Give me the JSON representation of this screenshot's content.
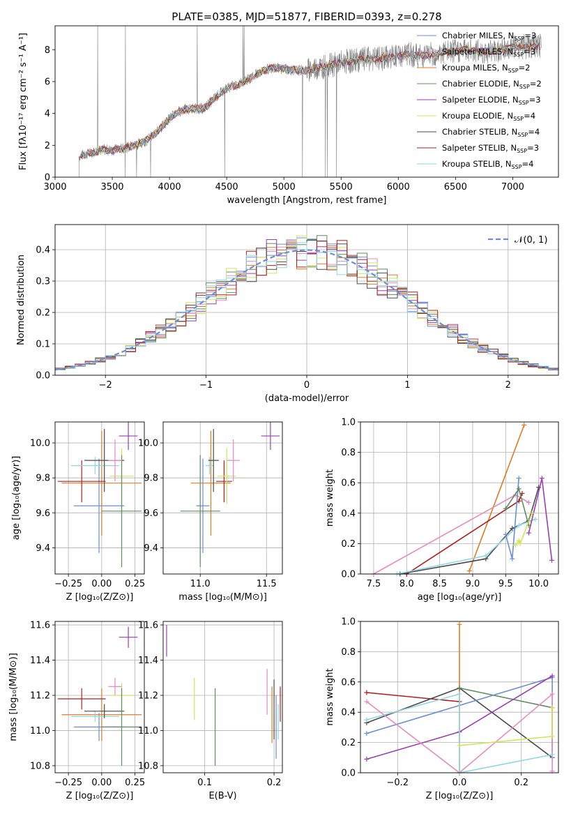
{
  "title": "PLATE=0385, MJD=51877, FIBERID=0393, z=0.278",
  "colors": {
    "Chabrier MILES": "#6a8ed4",
    "Salpeter MILES": "#e889c3",
    "Kroupa MILES": "#e07b22",
    "Chabrier ELODIE": "#5f8c5f",
    "Salpeter ELODIE": "#9b3fb0",
    "Kroupa ELODIE": "#cfe65a",
    "Chabrier STELIB": "#4a4a4a",
    "Salpeter STELIB": "#b01f1f",
    "Kroupa STELIB": "#8fd6e6",
    "spectrum": "#808080",
    "normal": "#6a8ed4"
  },
  "chart_data": [
    {
      "id": "spectrum",
      "type": "line",
      "title": "PLATE=0385, MJD=51877, FIBERID=0393, z=0.278",
      "xlabel": "wavelength [Angstrom, rest frame]",
      "ylabel": "Flux [fλ10⁻¹⁷ erg cm⁻² s⁻¹ A⁻¹]",
      "xlim": [
        3000,
        7400
      ],
      "ylim": [
        0,
        9.5
      ],
      "xticks": [
        "3000",
        "3500",
        "4000",
        "4500",
        "5000",
        "5500",
        "6000",
        "6500",
        "7000"
      ],
      "yticks": [
        "0",
        "2",
        "4",
        "6",
        "8"
      ],
      "legend_position": "top-right",
      "legend": [
        {
          "model": "Chabrier MILES",
          "label": "Chabrier MILES, N",
          "sub": "SSP",
          "suffix": "=3"
        },
        {
          "model": "Salpeter MILES",
          "label": "Salpeter MILES, N",
          "sub": "SSP",
          "suffix": "=3"
        },
        {
          "model": "Kroupa MILES",
          "label": "Kroupa MILES, N",
          "sub": "SSP",
          "suffix": "=2"
        },
        {
          "model": "Chabrier ELODIE",
          "label": "Chabrier ELODIE, N",
          "sub": "SSP",
          "suffix": "=2"
        },
        {
          "model": "Salpeter ELODIE",
          "label": "Salpeter ELODIE, N",
          "sub": "SSP",
          "suffix": "=3"
        },
        {
          "model": "Kroupa ELODIE",
          "label": "Kroupa ELODIE, N",
          "sub": "SSP",
          "suffix": "=4"
        },
        {
          "model": "Chabrier STELIB",
          "label": "Chabrier STELIB, N",
          "sub": "SSP",
          "suffix": "=4"
        },
        {
          "model": "Salpeter STELIB",
          "label": "Salpeter STELIB, N",
          "sub": "SSP",
          "suffix": "=3"
        },
        {
          "model": "Kroupa STELIB",
          "label": "Kroupa STELIB, N",
          "sub": "SSP",
          "suffix": "=4"
        }
      ],
      "continuum": {
        "x": [
          3200,
          3300,
          3400,
          3500,
          3600,
          3700,
          3800,
          3900,
          4000,
          4100,
          4200,
          4300,
          4400,
          4500,
          4600,
          4700,
          4800,
          4900,
          5000,
          5100,
          5200,
          5300,
          5400,
          5500,
          5600,
          5700,
          5800,
          5900,
          6000,
          6100,
          6200,
          6300,
          6400,
          6500,
          6600,
          6700,
          6800,
          6900,
          7000,
          7100,
          7200
        ],
        "y": [
          1.3,
          1.5,
          1.7,
          1.7,
          1.8,
          2.0,
          2.3,
          2.9,
          3.7,
          4.2,
          4.3,
          4.3,
          5.0,
          5.6,
          5.8,
          6.2,
          6.6,
          6.9,
          6.8,
          6.7,
          6.7,
          6.9,
          7.0,
          7.2,
          7.3,
          7.4,
          7.4,
          7.5,
          7.6,
          7.7,
          7.6,
          7.7,
          7.8,
          7.9,
          8.0,
          7.9,
          7.9,
          8.0,
          8.1,
          8.2,
          8.2
        ]
      }
    },
    {
      "id": "residuals",
      "type": "line",
      "xlabel": "(data-model)/error",
      "ylabel": "Normed distribution",
      "xlim": [
        -2.5,
        2.5
      ],
      "ylim": [
        0,
        0.48
      ],
      "xticks": [
        "−2",
        "−1",
        "0",
        "1",
        "2"
      ],
      "xtick_values": [
        -2,
        -1,
        0,
        1,
        2
      ],
      "yticks": [
        "0.0",
        "0.1",
        "0.2",
        "0.3",
        "0.4"
      ],
      "ytick_values": [
        0,
        0.1,
        0.2,
        0.3,
        0.4
      ],
      "grid": true,
      "legend_position": "top-right",
      "legend": [
        {
          "label": "𝒩(0, 1)",
          "style": "dashed"
        }
      ],
      "bin_width": 0.1
    },
    {
      "id": "age-vs-z",
      "type": "scatter",
      "xlabel": "Z [log₁₀(Z/Z⊙)]",
      "ylabel": "age  [log₁₀(age/yr)]",
      "xlim": [
        -0.35,
        0.32
      ],
      "ylim": [
        9.25,
        10.12
      ],
      "xticks": [
        "−0.25",
        "0.00",
        "0.25"
      ],
      "xtick_values": [
        -0.25,
        0,
        0.25
      ],
      "yticks": [
        "9.4",
        "9.6",
        "9.8",
        "10.0"
      ],
      "ytick_values": [
        9.4,
        9.6,
        9.8,
        10.0
      ],
      "grid": true,
      "points": [
        {
          "model": "Salpeter ELODIE",
          "x": 0.2,
          "y": 10.04,
          "xerr": 0.07,
          "yerr": 0.08
        },
        {
          "model": "Chabrier MILES",
          "x": -0.02,
          "y": 9.64,
          "xerr": 0.19,
          "yerr": 0.27
        },
        {
          "model": "Kroupa MILES",
          "x": 0.0,
          "y": 9.77,
          "xerr": 0.3,
          "yerr": 0.3
        },
        {
          "model": "Salpeter STELIB",
          "x": -0.15,
          "y": 9.78,
          "xerr": 0.18,
          "yerr": 0.12
        },
        {
          "model": "Kroupa STELIB",
          "x": -0.05,
          "y": 9.87,
          "xerr": 0.18,
          "yerr": 0.05
        },
        {
          "model": "Chabrier STELIB",
          "x": 0.02,
          "y": 9.9,
          "xerr": 0.15,
          "yerr": 0.18
        },
        {
          "model": "Kroupa ELODIE",
          "x": 0.15,
          "y": 9.81,
          "xerr": 0.09,
          "yerr": 0.16
        },
        {
          "model": "Chabrier ELODIE",
          "x": 0.15,
          "y": 9.61,
          "xerr": 0.15,
          "yerr": 0.32
        },
        {
          "model": "Salpeter MILES",
          "x": 0.1,
          "y": 9.9,
          "xerr": 0.05,
          "yerr": 0.12
        }
      ]
    },
    {
      "id": "age-vs-mass",
      "type": "scatter",
      "xlabel": "mass [log₁₀(M/M⊙)]",
      "ylabel": "",
      "xlim": [
        10.72,
        11.62
      ],
      "ylim": [
        9.25,
        10.12
      ],
      "xticks": [
        "11.0",
        "11.5"
      ],
      "xtick_values": [
        11.0,
        11.5
      ],
      "yticks": [
        "9.4",
        "9.6",
        "9.8",
        "10.0"
      ],
      "ytick_values": [
        9.4,
        9.6,
        9.8,
        10.0
      ],
      "grid": true,
      "points": [
        {
          "model": "Salpeter ELODIE",
          "x": 11.53,
          "y": 10.04,
          "xerr": 0.07,
          "yerr": 0.08
        },
        {
          "model": "Chabrier MILES",
          "x": 11.02,
          "y": 9.64,
          "xerr": 0.05,
          "yerr": 0.27
        },
        {
          "model": "Kroupa MILES",
          "x": 11.08,
          "y": 9.77,
          "xerr": 0.15,
          "yerr": 0.3
        },
        {
          "model": "Salpeter STELIB",
          "x": 11.18,
          "y": 9.78,
          "xerr": 0.06,
          "yerr": 0.12
        },
        {
          "model": "Kroupa STELIB",
          "x": 11.07,
          "y": 9.87,
          "xerr": 0.03,
          "yerr": 0.05
        },
        {
          "model": "Chabrier STELIB",
          "x": 11.1,
          "y": 9.9,
          "xerr": 0.04,
          "yerr": 0.18
        },
        {
          "model": "Kroupa ELODIE",
          "x": 11.2,
          "y": 9.81,
          "xerr": 0.07,
          "yerr": 0.16
        },
        {
          "model": "Chabrier ELODIE",
          "x": 11.0,
          "y": 9.61,
          "xerr": 0.15,
          "yerr": 0.32
        },
        {
          "model": "Salpeter MILES",
          "x": 11.25,
          "y": 9.9,
          "xerr": 0.05,
          "yerr": 0.12
        }
      ]
    },
    {
      "id": "weight-vs-age",
      "type": "line",
      "xlabel": "age  [log₁₀(age/yr)]",
      "ylabel": "mass weight",
      "xlim": [
        7.3,
        10.3
      ],
      "ylim": [
        0,
        1
      ],
      "xticks": [
        "7.5",
        "8.0",
        "8.5",
        "9.0",
        "9.5",
        "10.0"
      ],
      "xtick_values": [
        7.5,
        8.0,
        8.5,
        9.0,
        9.5,
        10.0
      ],
      "yticks": [
        "0.0",
        "0.2",
        "0.4",
        "0.6",
        "0.8",
        "1.0"
      ],
      "ytick_values": [
        0,
        0.2,
        0.4,
        0.6,
        0.8,
        1.0
      ],
      "grid": true,
      "series": [
        {
          "model": "Kroupa MILES",
          "x": [
            8.95,
            9.78
          ],
          "y": [
            0.02,
            0.98
          ]
        },
        {
          "model": "Salpeter MILES",
          "x": [
            7.5,
            9.65,
            9.85
          ],
          "y": [
            0.0,
            0.52,
            0.47
          ]
        },
        {
          "model": "Salpeter STELIB",
          "x": [
            8.0,
            9.7,
            9.75
          ],
          "y": [
            0.0,
            0.48,
            0.53
          ]
        },
        {
          "model": "Chabrier STELIB",
          "x": [
            7.9,
            9.2,
            9.6,
            9.85,
            10.0
          ],
          "y": [
            0.0,
            0.1,
            0.3,
            0.35,
            0.57
          ]
        },
        {
          "model": "Kroupa STELIB",
          "x": [
            7.85,
            9.2,
            9.7,
            9.95
          ],
          "y": [
            0.0,
            0.12,
            0.32,
            0.36
          ]
        },
        {
          "model": "Chabrier MILES",
          "x": [
            9.5,
            9.6,
            9.7
          ],
          "y": [
            0.26,
            0.1,
            0.63
          ]
        },
        {
          "model": "Chabrier ELODIE",
          "x": [
            9.5,
            9.7,
            9.85
          ],
          "y": [
            0.43,
            0.56,
            0.32
          ]
        },
        {
          "model": "Salpeter ELODIE",
          "x": [
            9.85,
            10.05,
            10.2
          ],
          "y": [
            0.27,
            0.63,
            0.09
          ]
        },
        {
          "model": "Kroupa ELODIE",
          "x": [
            9.65,
            9.7,
            9.72,
            9.9
          ],
          "y": [
            0.19,
            0.22,
            0.2,
            0.4
          ]
        }
      ]
    },
    {
      "id": "mass-vs-z",
      "type": "scatter",
      "xlabel": "Z [log₁₀(Z/Z⊙)]",
      "ylabel": "mass [log₁₀(M/M⊙)]",
      "xlim": [
        -0.35,
        0.32
      ],
      "ylim": [
        10.76,
        11.62
      ],
      "xticks": [
        "−0.25",
        "0.00",
        "0.25"
      ],
      "xtick_values": [
        -0.25,
        0,
        0.25
      ],
      "yticks": [
        "10.8",
        "11.0",
        "11.2",
        "11.4",
        "11.6"
      ],
      "ytick_values": [
        10.8,
        11.0,
        11.2,
        11.4,
        11.6
      ],
      "grid": true,
      "points": [
        {
          "model": "Salpeter ELODIE",
          "x": 0.2,
          "y": 11.53,
          "xerr": 0.07,
          "yerr": 0.06
        },
        {
          "model": "Chabrier MILES",
          "x": -0.02,
          "y": 11.02,
          "xerr": 0.19,
          "yerr": 0.08
        },
        {
          "model": "Kroupa MILES",
          "x": 0.0,
          "y": 11.09,
          "xerr": 0.3,
          "yerr": 0.15
        },
        {
          "model": "Salpeter STELIB",
          "x": -0.15,
          "y": 11.18,
          "xerr": 0.18,
          "yerr": 0.06
        },
        {
          "model": "Kroupa STELIB",
          "x": -0.05,
          "y": 11.08,
          "xerr": 0.18,
          "yerr": 0.03
        },
        {
          "model": "Chabrier STELIB",
          "x": 0.02,
          "y": 11.11,
          "xerr": 0.15,
          "yerr": 0.04
        },
        {
          "model": "Kroupa ELODIE",
          "x": 0.15,
          "y": 11.2,
          "xerr": 0.09,
          "yerr": 0.07
        },
        {
          "model": "Chabrier ELODIE",
          "x": 0.15,
          "y": 11.02,
          "xerr": 0.15,
          "yerr": 0.22
        },
        {
          "model": "Salpeter MILES",
          "x": 0.1,
          "y": 11.25,
          "xerr": 0.05,
          "yerr": 0.05
        }
      ]
    },
    {
      "id": "mass-vs-ebv",
      "type": "scatter",
      "xlabel": "E(B-V)",
      "ylabel": "",
      "xlim": [
        0.04,
        0.212
      ],
      "ylim": [
        10.76,
        11.62
      ],
      "xticks": [
        "0.1",
        "0.2"
      ],
      "xtick_values": [
        0.1,
        0.2
      ],
      "yticks": [
        "10.8",
        "11.0",
        "11.2",
        "11.4",
        "11.6"
      ],
      "ytick_values": [
        10.8,
        11.0,
        11.2,
        11.4,
        11.6
      ],
      "grid": true,
      "points": [
        {
          "model": "Salpeter ELODIE",
          "x": 0.045,
          "y": 11.51,
          "xerr": 0,
          "yerr": 0.09
        },
        {
          "model": "Kroupa ELODIE",
          "x": 0.085,
          "y": 11.18,
          "xerr": 0,
          "yerr": 0.12
        },
        {
          "model": "Chabrier ELODIE",
          "x": 0.115,
          "y": 11.02,
          "xerr": 0,
          "yerr": 0.22
        },
        {
          "model": "Salpeter MILES",
          "x": 0.19,
          "y": 11.22,
          "xerr": 0,
          "yerr": 0.13
        },
        {
          "model": "Kroupa MILES",
          "x": 0.197,
          "y": 11.09,
          "xerr": 0,
          "yerr": 0.16
        },
        {
          "model": "Chabrier STELIB",
          "x": 0.2,
          "y": 11.12,
          "xerr": 0,
          "yerr": 0.17
        },
        {
          "model": "Chabrier MILES",
          "x": 0.203,
          "y": 11.02,
          "xerr": 0,
          "yerr": 0.18
        },
        {
          "model": "Kroupa STELIB",
          "x": 0.206,
          "y": 11.05,
          "xerr": 0,
          "yerr": 0.1
        },
        {
          "model": "Salpeter STELIB",
          "x": 0.209,
          "y": 11.15,
          "xerr": 0,
          "yerr": 0.1
        }
      ]
    },
    {
      "id": "weight-vs-z",
      "type": "line",
      "xlabel": "Z [log₁₀(Z/Z⊙)]",
      "ylabel": "mass weight",
      "xlim": [
        -0.32,
        0.32
      ],
      "ylim": [
        0,
        1
      ],
      "xticks": [
        "−0.2",
        "0.0",
        "0.2"
      ],
      "xtick_values": [
        -0.2,
        0,
        0.2
      ],
      "yticks": [
        "0.0",
        "0.2",
        "0.4",
        "0.6",
        "0.8",
        "1.0"
      ],
      "ytick_values": [
        0,
        0.2,
        0.4,
        0.6,
        0.8,
        1.0
      ],
      "grid": true,
      "series": [
        {
          "model": "Kroupa MILES",
          "x": [
            0.0,
            0.0
          ],
          "y": [
            0.0,
            0.98
          ]
        },
        {
          "model": "Salpeter STELIB",
          "x": [
            -0.3,
            0.0
          ],
          "y": [
            0.53,
            0.47
          ]
        },
        {
          "model": "Chabrier STELIB",
          "x": [
            -0.3,
            0.0,
            0.3
          ],
          "y": [
            0.33,
            0.56,
            0.1
          ]
        },
        {
          "model": "Chabrier ELODIE",
          "x": [
            0.0,
            0.3,
            0.3
          ],
          "y": [
            0.56,
            0.43,
            0.1
          ]
        },
        {
          "model": "Chabrier MILES",
          "x": [
            -0.3,
            0.3,
            0.3
          ],
          "y": [
            0.26,
            0.63,
            0.1
          ]
        },
        {
          "model": "Salpeter ELODIE",
          "x": [
            -0.3,
            0.0,
            0.3
          ],
          "y": [
            0.09,
            0.27,
            0.64
          ]
        },
        {
          "model": "Salpeter MILES",
          "x": [
            -0.3,
            0.0,
            0.3,
            0.3
          ],
          "y": [
            0.47,
            0.0,
            0.52,
            0.01
          ]
        },
        {
          "model": "Kroupa STELIB",
          "x": [
            -0.3,
            0.0,
            0.0,
            0.3
          ],
          "y": [
            0.35,
            0.52,
            0.0,
            0.12
          ]
        },
        {
          "model": "Kroupa ELODIE",
          "x": [
            0.0,
            0.3,
            0.3
          ],
          "y": [
            0.18,
            0.24,
            0.43
          ]
        }
      ]
    }
  ]
}
